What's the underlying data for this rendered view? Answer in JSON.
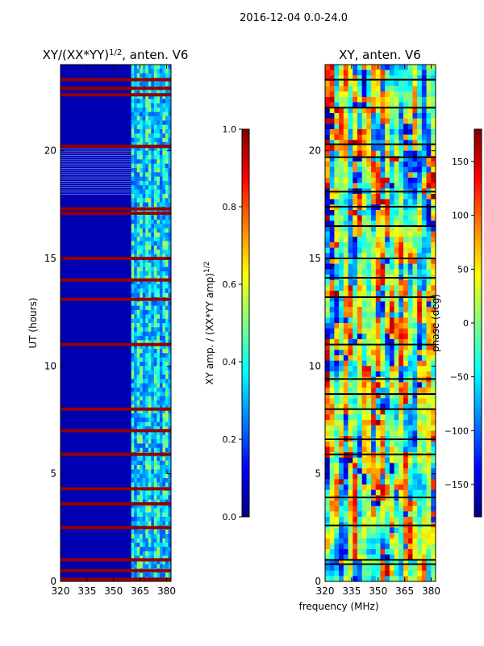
{
  "figure": {
    "suptitle": "2016-12-04 0.0-24.0",
    "shared_xlabel": "frequency (MHz)"
  },
  "colormap": {
    "name": "jet",
    "stops": [
      "#00007f",
      "#0000ff",
      "#0080ff",
      "#00ffff",
      "#80ff80",
      "#ffff00",
      "#ff8000",
      "#ff0000",
      "#7f0000"
    ]
  },
  "chart_data": [
    {
      "type": "heatmap",
      "title": "XY/(XX*YY)",
      "title_exponent": "1/2",
      "title_suffix": ", anten. V6",
      "xlabel": "",
      "ylabel": "UT (hours)",
      "xlim": [
        320,
        382.5
      ],
      "ylim": [
        0,
        24
      ],
      "xticks": [
        320,
        335,
        350,
        365,
        380
      ],
      "yticks": [
        0,
        5,
        10,
        15,
        20
      ],
      "colorbar": {
        "label": "XY amp. / (XX*YY amp)",
        "label_exponent": "1/2",
        "range": [
          0.0,
          1.0
        ],
        "ticks": [
          "0.0",
          "0.2",
          "0.4",
          "0.6",
          "0.8",
          "1.0"
        ]
      },
      "description_values": {
        "low_band_mean_normalized": 0.05,
        "high_band_start_mhz": 360,
        "high_band_normalized_range": [
          0.2,
          0.55
        ],
        "saturated_hours": [
          0.1,
          0.5,
          1.0,
          2.5,
          3.6,
          4.3,
          5.9,
          7.0,
          8.0,
          11.0,
          13.1,
          14.0,
          15.0,
          17.1,
          17.3,
          20.2,
          22.6,
          22.9,
          23.3
        ]
      }
    },
    {
      "type": "heatmap",
      "title": "XY, anten. V6",
      "xlabel": "",
      "ylabel": "",
      "xlim": [
        320,
        382.5
      ],
      "ylim": [
        0,
        24
      ],
      "xticks": [
        320,
        335,
        350,
        365,
        380
      ],
      "yticks": [
        0,
        5,
        10,
        15,
        20
      ],
      "colorbar": {
        "label": "phase (deg)",
        "range": [
          -180,
          180
        ],
        "ticks": [
          "−150",
          "−100",
          "−50",
          "0",
          "50",
          "100",
          "150"
        ]
      },
      "description_values": {
        "phase_range_deg": [
          -180,
          180
        ],
        "black_line_hours": [
          0.8,
          1.0,
          2.6,
          3.9,
          5.9,
          6.6,
          8.0,
          8.7,
          9.4,
          11.0,
          13.2,
          14.1,
          15.0,
          16.5,
          17.4,
          18.1,
          19.7,
          20.3,
          22.0,
          23.3
        ]
      }
    }
  ]
}
